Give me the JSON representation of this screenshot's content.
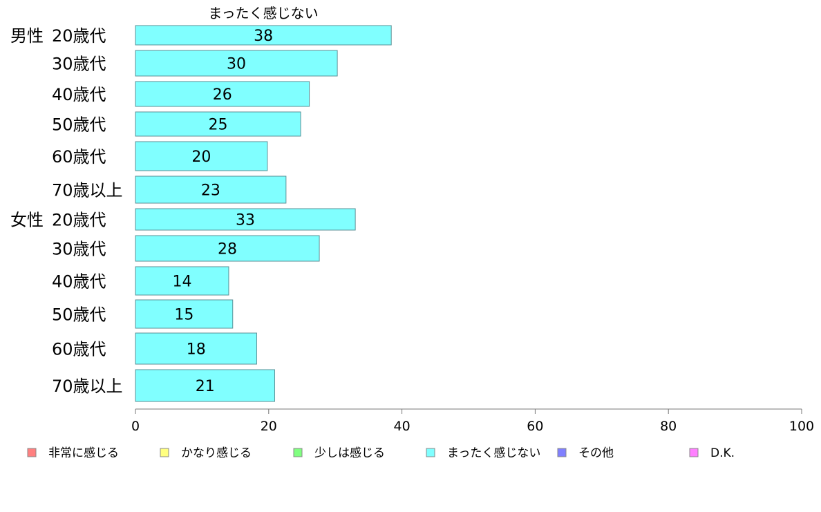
{
  "chart_data": {
    "type": "bar",
    "orientation": "horizontal",
    "title": "まったく感じない",
    "groups": [
      {
        "label": "男性",
        "first_index": 0
      },
      {
        "label": "女性",
        "first_index": 6
      }
    ],
    "categories": [
      "20歳代",
      "30歳代",
      "40歳代",
      "50歳代",
      "60歳代",
      "70歳以上",
      "20歳代",
      "30歳代",
      "40歳代",
      "50歳代",
      "60歳代",
      "70歳以上"
    ],
    "series": [
      {
        "name": "まったく感じない",
        "values": [
          38.4,
          30.3,
          26.1,
          24.8,
          19.8,
          22.6,
          33.0,
          27.6,
          14.0,
          14.6,
          18.2,
          20.9
        ],
        "labels": [
          "38",
          "30",
          "26",
          "25",
          "20",
          "23",
          "33",
          "28",
          "14",
          "15",
          "18",
          "21"
        ],
        "color": "#80ffff"
      }
    ],
    "xlim": [
      0,
      100
    ],
    "xticks": [
      0,
      20,
      40,
      60,
      80,
      100
    ],
    "grid": false,
    "legend_position": "bottom",
    "legend": [
      {
        "label": "非常に感じる",
        "color": "#ff8080"
      },
      {
        "label": "かなり感じる",
        "color": "#ffff80"
      },
      {
        "label": "少しは感じる",
        "color": "#80ff80"
      },
      {
        "label": "まったく感じない",
        "color": "#80ffff"
      },
      {
        "label": "その他",
        "color": "#8080ff"
      },
      {
        "label": "D.K.",
        "color": "#ff80ff"
      }
    ]
  }
}
